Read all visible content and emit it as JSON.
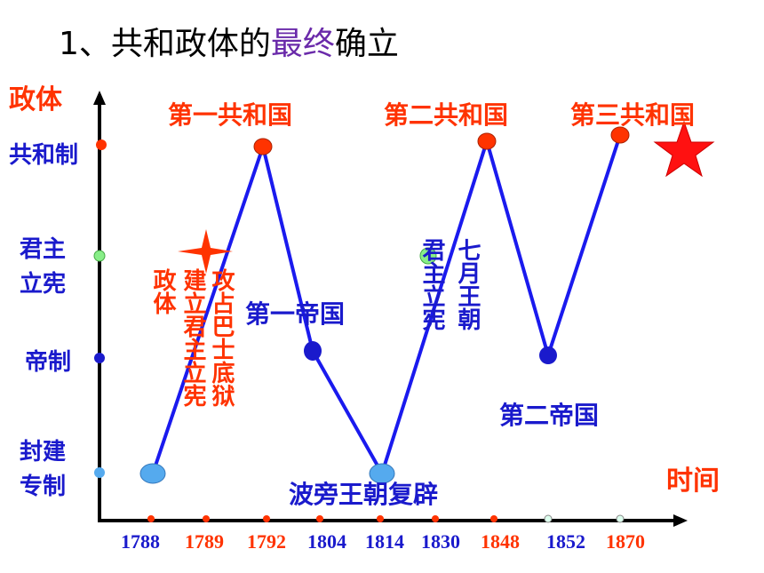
{
  "title": {
    "parts": [
      "1、共和政体的",
      "最终",
      "确立"
    ]
  },
  "y_axis": {
    "label": "政体",
    "levels": [
      "共和制",
      "君主立宪",
      "帝制",
      "封建专制"
    ]
  },
  "x_axis": {
    "label": "时间",
    "years": [
      "1788",
      "1789",
      "1792",
      "1804",
      "1814",
      "1830",
      "1848",
      "1852",
      "1870"
    ]
  },
  "annotations": {
    "republics": [
      "第一共和国",
      "第二共和国",
      "第三共和国"
    ],
    "empires": [
      "第一帝国",
      "第二帝国"
    ],
    "restoration": "波旁王朝复辟",
    "vertical": [
      "政体",
      "建立君主立宪",
      "攻占巴士底狱",
      "君主立宪",
      "七月王朝"
    ]
  }
}
